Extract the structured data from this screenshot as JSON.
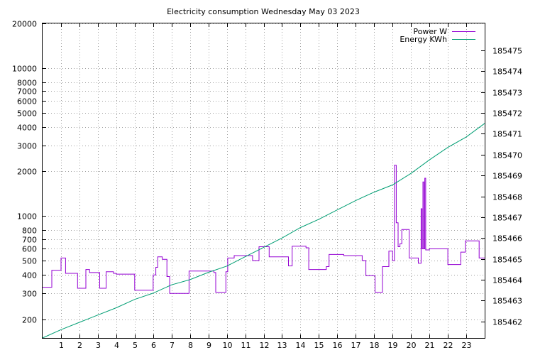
{
  "chart_data": {
    "type": "line",
    "title": "Electricity consumption Wednesday May 03 2023",
    "x_ticks": [
      "1",
      "2",
      "3",
      "4",
      "5",
      "6",
      "7",
      "8",
      "9",
      "10",
      "11",
      "12",
      "13",
      "14",
      "15",
      "16",
      "17",
      "18",
      "19",
      "20",
      "21",
      "22",
      "23"
    ],
    "xlim": [
      0,
      24
    ],
    "y_left": {
      "scale": "log",
      "ylim": [
        150,
        20000
      ],
      "ticks": [
        200,
        300,
        400,
        500,
        600,
        700,
        800,
        1000,
        2000,
        3000,
        4000,
        5000,
        6000,
        7000,
        8000,
        10000,
        20000
      ],
      "tick_labels": [
        "200",
        "300",
        "400",
        "500",
        "600",
        "700",
        "800",
        "1000",
        "2000",
        "3000",
        "4000",
        "5000",
        "6000",
        "7000",
        "8000",
        "10000",
        "20000"
      ]
    },
    "y_right": {
      "scale": "linear",
      "ylim": [
        185461.2,
        185476.3
      ],
      "ticks": [
        185462,
        185463,
        185464,
        185465,
        185466,
        185467,
        185468,
        185469,
        185470,
        185471,
        185472,
        185473,
        185474,
        185475
      ],
      "tick_labels": [
        "185462",
        "185463",
        "185464",
        "185465",
        "185466",
        "185467",
        "185468",
        "185469",
        "185470",
        "185471",
        "185472",
        "185473",
        "185474",
        "185475"
      ]
    },
    "grid": true,
    "legend_position": "top-right",
    "series": [
      {
        "name": "Power W",
        "axis": "left",
        "color": "#9400d3",
        "style": "step",
        "x": [
          0,
          0.5,
          0.5,
          1.0,
          1.0,
          1.25,
          1.25,
          1.9,
          1.9,
          2.35,
          2.35,
          2.55,
          2.55,
          3.1,
          3.1,
          3.45,
          3.45,
          3.85,
          3.85,
          4.0,
          4.0,
          5.0,
          5.0,
          6.0,
          6.0,
          6.15,
          6.15,
          6.25,
          6.25,
          6.5,
          6.5,
          6.75,
          6.75,
          6.9,
          6.9,
          7.95,
          7.95,
          9.3,
          9.3,
          9.4,
          9.4,
          9.95,
          9.95,
          10.05,
          10.05,
          10.4,
          10.4,
          11.4,
          11.4,
          11.75,
          11.75,
          12.3,
          12.3,
          13.35,
          13.35,
          13.55,
          13.55,
          14.3,
          14.3,
          14.45,
          14.45,
          15.4,
          15.4,
          15.55,
          15.55,
          16.35,
          16.35,
          17.35,
          17.35,
          17.55,
          17.55,
          18.05,
          18.05,
          18.45,
          18.45,
          18.8,
          18.8,
          19.0,
          19.0,
          19.1,
          19.1,
          19.2,
          19.2,
          19.3,
          19.3,
          19.4,
          19.4,
          19.5,
          19.5,
          19.9,
          19.9,
          20.4,
          20.4,
          20.55,
          20.55,
          20.6,
          20.6,
          20.65,
          20.65,
          20.7,
          20.7,
          20.75,
          20.75,
          20.8,
          20.8,
          21.0,
          21.0,
          22.0,
          22.0,
          22.7,
          22.7,
          22.95,
          22.95,
          23.7,
          23.7,
          24.0
        ],
        "y": [
          330,
          330,
          430,
          430,
          520,
          520,
          410,
          410,
          325,
          325,
          435,
          435,
          415,
          415,
          325,
          325,
          420,
          420,
          410,
          410,
          405,
          405,
          315,
          315,
          400,
          400,
          450,
          450,
          530,
          530,
          510,
          510,
          390,
          390,
          300,
          300,
          425,
          425,
          415,
          415,
          305,
          305,
          420,
          420,
          520,
          520,
          540,
          540,
          500,
          500,
          620,
          620,
          530,
          530,
          460,
          460,
          625,
          625,
          610,
          610,
          435,
          435,
          455,
          455,
          550,
          550,
          540,
          540,
          500,
          500,
          395,
          395,
          305,
          305,
          455,
          455,
          580,
          580,
          500,
          500,
          2200,
          2200,
          900,
          900,
          620,
          620,
          650,
          650,
          810,
          810,
          520,
          520,
          480,
          480,
          1120,
          1120,
          600,
          600,
          1700,
          1700,
          600,
          600,
          1800,
          1800,
          590,
          590,
          600,
          600,
          470,
          470,
          570,
          570,
          680,
          680,
          520,
          520
        ]
      },
      {
        "name": "Energy KWh",
        "axis": "right",
        "color": "#009e73",
        "style": "line",
        "x": [
          0,
          1,
          2,
          3,
          4,
          5,
          6,
          7,
          8,
          9,
          10,
          11,
          12,
          13,
          14,
          15,
          16,
          17,
          18,
          19,
          20,
          21,
          22,
          23,
          24
        ],
        "y": [
          185461.2,
          185461.6,
          185461.95,
          185462.3,
          185462.65,
          185463.05,
          185463.35,
          185463.75,
          185464.0,
          185464.35,
          185464.65,
          185465.1,
          185465.55,
          185466.0,
          185466.5,
          185466.9,
          185467.35,
          185467.8,
          185468.2,
          185468.55,
          185469.1,
          185469.75,
          185470.35,
          185470.85,
          185471.5
        ]
      }
    ]
  }
}
